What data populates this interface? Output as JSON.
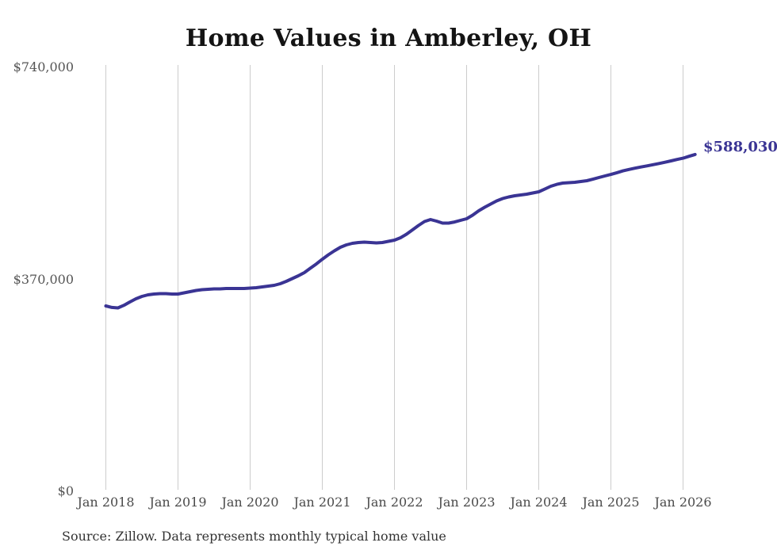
{
  "title": "Home Values in Amberley, OH",
  "source_note": "Source: Zillow. Data represents monthly typical home value",
  "end_label": "$588,030",
  "colors": {
    "line": "#3a3494",
    "end_label": "#3a3494",
    "grid": "#cccccc",
    "y_tick": "#555555",
    "x_tick": "#4a4a4a",
    "title": "#141414",
    "source": "#333333"
  },
  "chart_data": {
    "type": "line",
    "title": "Home Values in Amberley, OH",
    "series_name": "Monthly typical home value (Zillow)",
    "unit": "USD",
    "start_month": "2018-01",
    "end_month": "2026-03",
    "last_value": 588030,
    "ylim": [
      0,
      740000
    ],
    "grid": "vertical-only",
    "legend": "none",
    "y_ticks": [
      {
        "label": "$740,000",
        "value": 740000
      },
      {
        "label": "$370,000",
        "value": 370000
      },
      {
        "label": "$0",
        "value": 0
      }
    ],
    "x_tick_labels": [
      "Jan 2018",
      "Jan 2019",
      "Jan 2020",
      "Jan 2021",
      "Jan 2022",
      "Jan 2023",
      "Jan 2024",
      "Jan 2025",
      "Jan 2026"
    ],
    "values": [
      323700,
      321000,
      320200,
      324800,
      330600,
      336100,
      340300,
      343000,
      344400,
      345100,
      345100,
      344400,
      344400,
      346500,
      348600,
      350600,
      352000,
      352700,
      353400,
      353400,
      354100,
      354100,
      354100,
      354100,
      354800,
      355500,
      356900,
      358200,
      359600,
      362400,
      366500,
      371400,
      376200,
      381700,
      389400,
      396900,
      405200,
      412900,
      419800,
      426000,
      430100,
      432900,
      434300,
      435000,
      434300,
      433600,
      434300,
      436400,
      438400,
      442600,
      448800,
      456400,
      464000,
      471000,
      474400,
      471600,
      468200,
      468200,
      470200,
      473000,
      475800,
      482000,
      489600,
      495900,
      501400,
      506900,
      511100,
      513800,
      515900,
      517300,
      518700,
      520700,
      522800,
      527600,
      532500,
      535900,
      538000,
      538700,
      539400,
      540800,
      542200,
      544900,
      547700,
      550500,
      553200,
      556200,
      559300,
      561800,
      564000,
      566100,
      568100,
      570100,
      572200,
      574400,
      576800,
      579300,
      581500,
      584800,
      588030
    ]
  }
}
